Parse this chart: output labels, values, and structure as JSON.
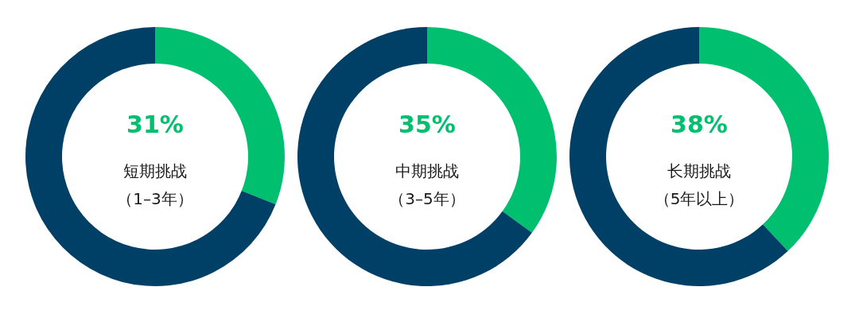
{
  "chart_data": [
    {
      "type": "donut",
      "title": "短期挑战",
      "subtitle": "（1–3年）",
      "categories": [
        null,
        null
      ],
      "values": [
        31,
        69
      ],
      "colors": [
        "#00bf6f",
        "#003f66"
      ],
      "value_labels": [
        "31%",
        null
      ]
    },
    {
      "type": "donut",
      "title": "中期挑战",
      "subtitle": "（3–5年）",
      "categories": [
        null,
        null
      ],
      "values": [
        35,
        65
      ],
      "colors": [
        "#00bf6f",
        "#003f66"
      ],
      "value_labels": [
        "35%",
        null
      ]
    },
    {
      "type": "donut",
      "title": "长期挑战",
      "subtitle": "（5年以上）",
      "categories": [
        null,
        null
      ],
      "values": [
        38,
        62
      ],
      "colors": [
        "#00bf6f",
        "#003f66"
      ],
      "value_labels": [
        "38%",
        null
      ]
    }
  ]
}
